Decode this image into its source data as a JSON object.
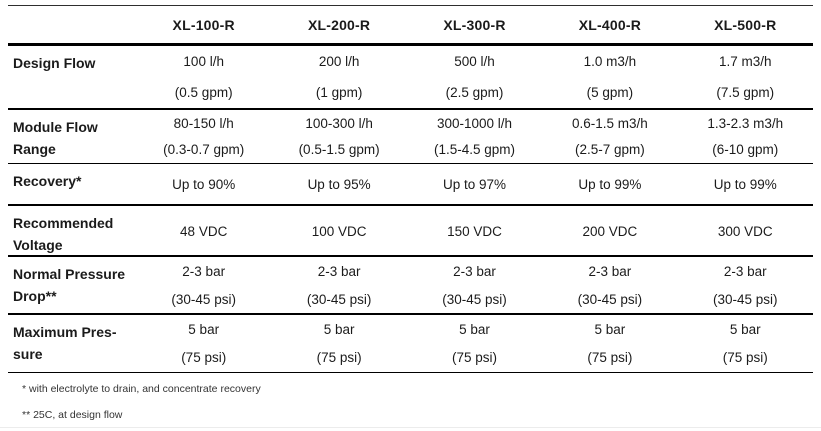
{
  "colors": {
    "rule": "#000000",
    "text": "#1b1b1b",
    "footnote_text": "#333333"
  },
  "table": {
    "columns": [
      "XL-100-R",
      "XL-200-R",
      "XL-300-R",
      "XL-400-R",
      "XL-500-R"
    ],
    "rows": [
      {
        "label": "Design Flow",
        "cells": [
          {
            "line1": "100 l/h",
            "line2": "(0.5 gpm)"
          },
          {
            "line1": "200 l/h",
            "line2": "(1 gpm)"
          },
          {
            "line1": "500 l/h",
            "line2": "(2.5 gpm)"
          },
          {
            "line1": "1.0 m3/h",
            "line2": "(5 gpm)"
          },
          {
            "line1": "1.7 m3/h",
            "line2": "(7.5 gpm)"
          }
        ]
      },
      {
        "label": "Module Flow\nRange",
        "cells": [
          {
            "line1": "80-150 l/h",
            "line2": "(0.3-0.7 gpm)"
          },
          {
            "line1": "100-300 l/h",
            "line2": "(0.5-1.5 gpm)"
          },
          {
            "line1": "300-1000 l/h",
            "line2": "(1.5-4.5 gpm)"
          },
          {
            "line1": "0.6-1.5 m3/h",
            "line2": "(2.5-7 gpm)"
          },
          {
            "line1": "1.3-2.3 m3/h",
            "line2": "(6-10 gpm)"
          }
        ]
      },
      {
        "label": "Recovery*",
        "cells": [
          {
            "line1": "Up to 90%"
          },
          {
            "line1": "Up to 95%"
          },
          {
            "line1": "Up to 97%"
          },
          {
            "line1": "Up to 99%"
          },
          {
            "line1": "Up to 99%"
          }
        ]
      },
      {
        "label": "Recommended\nVoltage",
        "cells": [
          {
            "line1": "48 VDC"
          },
          {
            "line1": "100 VDC"
          },
          {
            "line1": "150 VDC"
          },
          {
            "line1": "200 VDC"
          },
          {
            "line1": "300 VDC"
          }
        ]
      },
      {
        "label": "Normal Pressure\nDrop**",
        "cells": [
          {
            "line1": "2-3 bar",
            "line2": "(30-45 psi)"
          },
          {
            "line1": "2-3 bar",
            "line2": "(30-45 psi)"
          },
          {
            "line1": "2-3 bar",
            "line2": "(30-45 psi)"
          },
          {
            "line1": "2-3 bar",
            "line2": "(30-45 psi)"
          },
          {
            "line1": "2-3 bar",
            "line2": "(30-45 psi)"
          }
        ]
      },
      {
        "label": "Maximum Pres-\nsure",
        "cells": [
          {
            "line1": "5 bar",
            "line2": "(75 psi)"
          },
          {
            "line1": "5 bar",
            "line2": "(75 psi)"
          },
          {
            "line1": "5 bar",
            "line2": "(75 psi)"
          },
          {
            "line1": "5 bar",
            "line2": "(75 psi)"
          },
          {
            "line1": "5 bar",
            "line2": "(75 psi)"
          }
        ]
      }
    ]
  },
  "footnotes": [
    "* with electrolyte to drain, and concentrate recovery",
    "** 25C, at design flow"
  ]
}
